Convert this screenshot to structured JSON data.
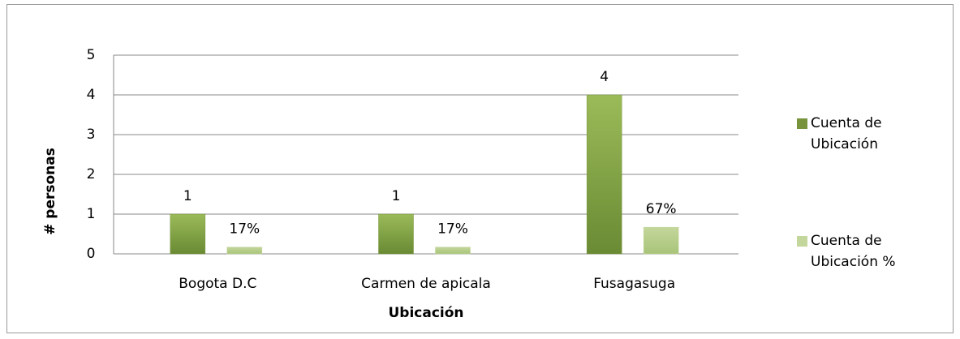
{
  "chart_data": {
    "type": "bar",
    "x_label": "Ubicación",
    "y_label": "# personas",
    "categories": [
      "Bogota D.C",
      "Carmen de apicala",
      "Fusagasuga"
    ],
    "series": [
      {
        "name": "Cuenta de Ubicación",
        "color": "#77933c",
        "values": [
          1,
          1,
          4
        ]
      },
      {
        "name": "Cuenta de Ubicación %",
        "color": "#c3d69b",
        "values": [
          0.17,
          0.17,
          0.67
        ],
        "value_labels": [
          "17%",
          "17%",
          "67%"
        ]
      }
    ],
    "ylim": [
      0,
      5
    ],
    "yticks": [
      0,
      1,
      2,
      3,
      4,
      5
    ],
    "grid": true,
    "legend": "right"
  }
}
